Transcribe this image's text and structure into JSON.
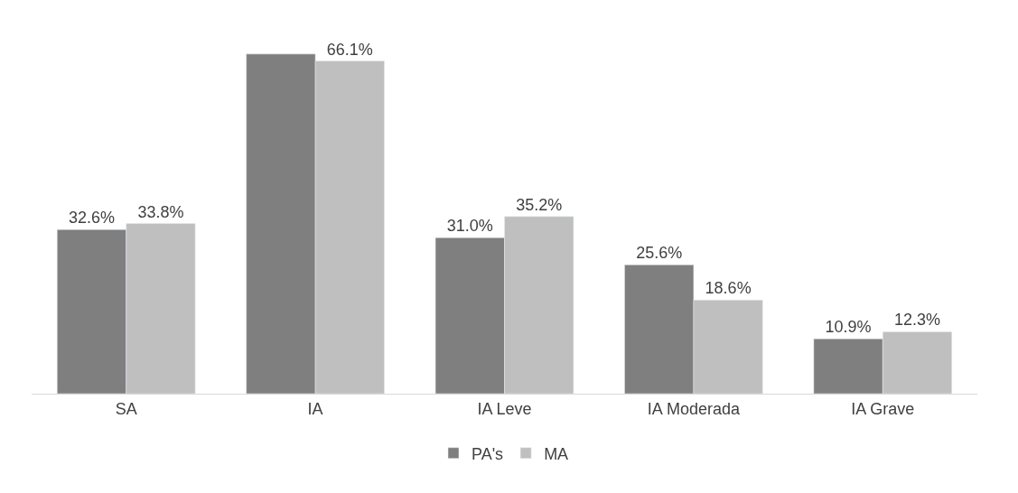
{
  "chart_data": {
    "type": "bar",
    "categories": [
      "SA",
      "IA",
      "IA Leve",
      "IA Moderada",
      "IA Grave"
    ],
    "series": [
      {
        "name": "PA's",
        "color": "#7f7f7f",
        "values": [
          32.6,
          67.5,
          31.0,
          25.6,
          10.9
        ],
        "value_labels": [
          "32.6%",
          null,
          "31.0%",
          "25.6%",
          "10.9%"
        ]
      },
      {
        "name": "MA",
        "color": "#bfbfbf",
        "values": [
          33.8,
          66.1,
          35.2,
          18.6,
          12.3
        ],
        "value_labels": [
          "33.8%",
          "66.1%",
          "35.2%",
          "18.6%",
          "12.3%"
        ]
      }
    ],
    "legend": "bottom"
  }
}
